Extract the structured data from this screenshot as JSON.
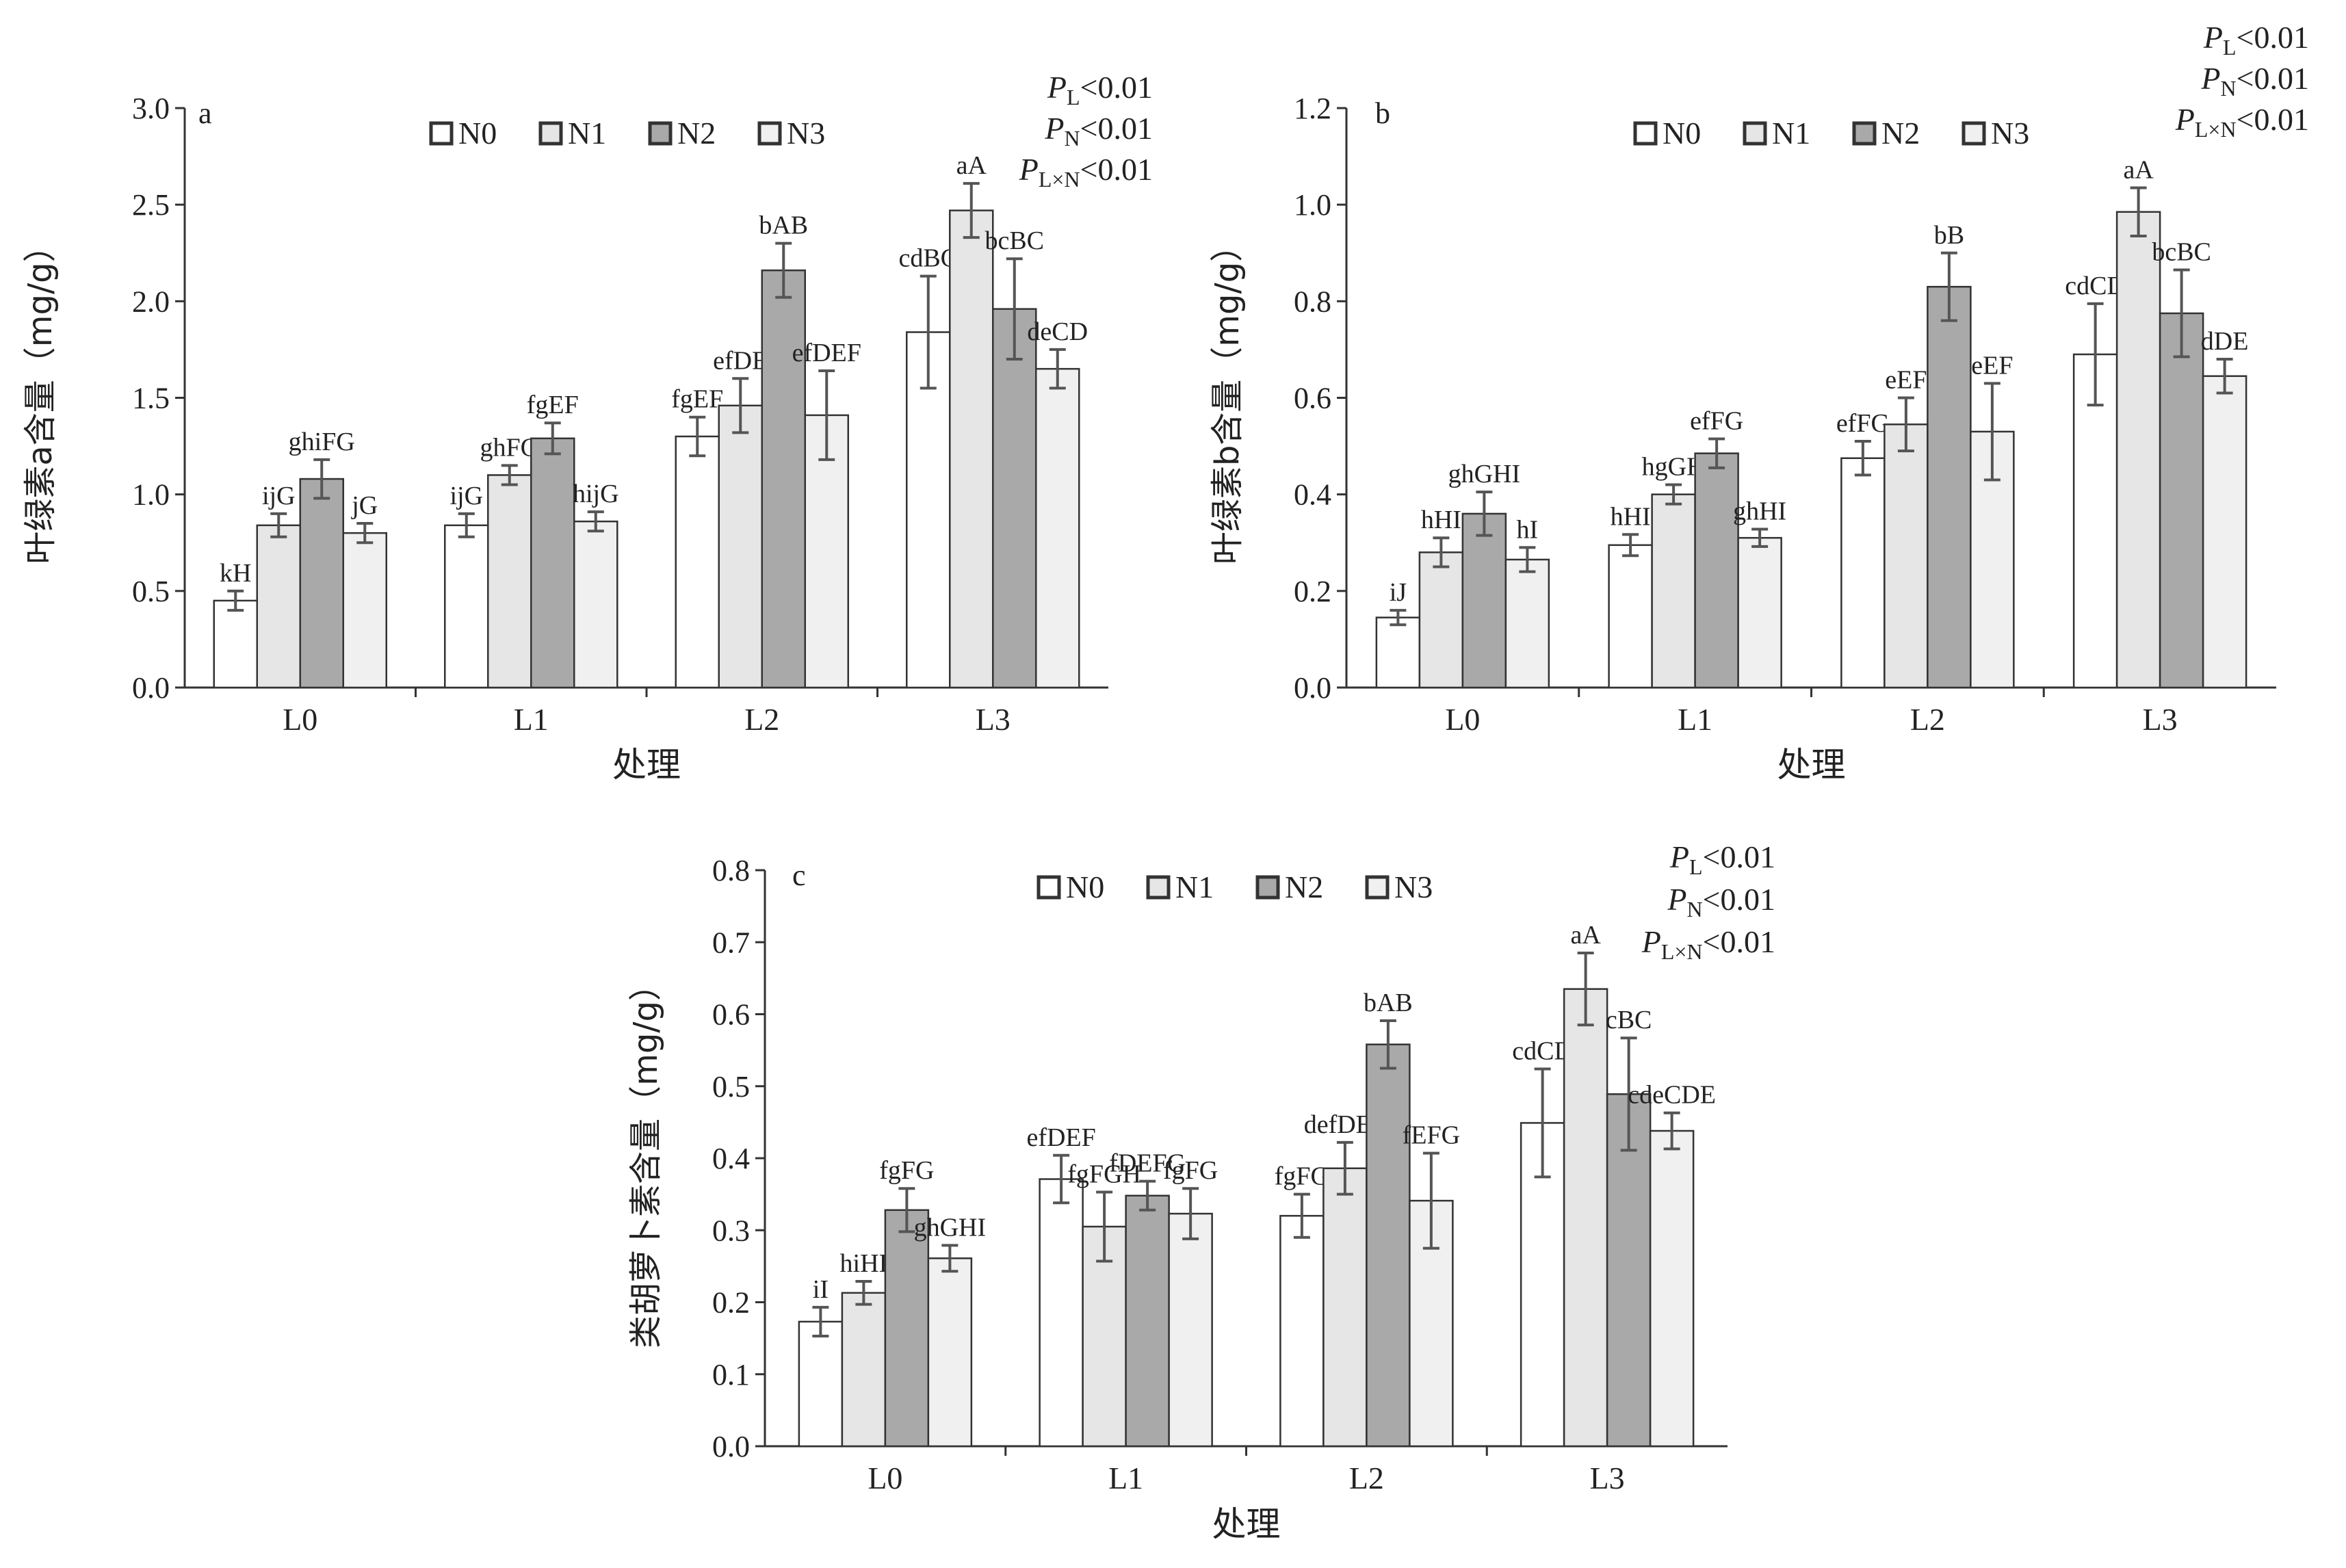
{
  "colors": {
    "N0": "#ffffff",
    "N1": "#e6e6e6",
    "N2": "#a9a9a9",
    "N3": "#f0f0f0",
    "stroke": "#333333",
    "error_bar": "#555555"
  },
  "chart_data": [
    {
      "type": "bar",
      "panel_letter": "a",
      "ylabel": "叶绿素a含量（mg/g）",
      "xlabel": "处理",
      "ylim": [
        0,
        3.0
      ],
      "yticks": [
        "0.0",
        "0.5",
        "1.0",
        "1.5",
        "2.0",
        "2.5",
        "3.0"
      ],
      "categories": [
        "L0",
        "L1",
        "L2",
        "L3"
      ],
      "legend": [
        "N0",
        "N1",
        "N2",
        "N3"
      ],
      "series": [
        {
          "name": "N0",
          "values": [
            0.45,
            0.84,
            1.3,
            1.84
          ],
          "errors": [
            0.05,
            0.06,
            0.1,
            0.29
          ],
          "letters": [
            "kH",
            "ijG",
            "fgEF",
            "cdBC"
          ]
        },
        {
          "name": "N1",
          "values": [
            0.84,
            1.1,
            1.46,
            2.47
          ],
          "errors": [
            0.06,
            0.05,
            0.14,
            0.14
          ],
          "letters": [
            "ijG",
            "ghFG",
            "efDE",
            "aA"
          ]
        },
        {
          "name": "N2",
          "values": [
            1.08,
            1.29,
            2.16,
            1.96
          ],
          "errors": [
            0.1,
            0.08,
            0.14,
            0.26
          ],
          "letters": [
            "ghiFG",
            "fgEF",
            "bAB",
            "bcBC"
          ]
        },
        {
          "name": "N3",
          "values": [
            0.8,
            0.86,
            1.41,
            1.65
          ],
          "errors": [
            0.05,
            0.05,
            0.23,
            0.1
          ],
          "letters": [
            "jG",
            "hijG",
            "efDEF",
            "deCD"
          ]
        }
      ],
      "p_values": [
        "<0.01",
        "<0.01",
        "<0.01"
      ],
      "p_subscripts": [
        "L",
        "N",
        "L×N"
      ],
      "p_symbol": "P"
    },
    {
      "type": "bar",
      "panel_letter": "b",
      "ylabel": "叶绿素b含量（mg/g）",
      "xlabel": "处理",
      "ylim": [
        0,
        1.2
      ],
      "yticks": [
        "0.0",
        "0.2",
        "0.4",
        "0.6",
        "0.8",
        "1.0",
        "1.2"
      ],
      "categories": [
        "L0",
        "L1",
        "L2",
        "L3"
      ],
      "legend": [
        "N0",
        "N1",
        "N2",
        "N3"
      ],
      "series": [
        {
          "name": "N0",
          "values": [
            0.145,
            0.295,
            0.475,
            0.69
          ],
          "errors": [
            0.015,
            0.022,
            0.035,
            0.105
          ],
          "letters": [
            "iJ",
            "hHI",
            "efFG",
            "cdCD"
          ]
        },
        {
          "name": "N1",
          "values": [
            0.28,
            0.4,
            0.545,
            0.985
          ],
          "errors": [
            0.03,
            0.02,
            0.055,
            0.05
          ],
          "letters": [
            "hHI",
            "hgGH",
            "eEF",
            "aA"
          ]
        },
        {
          "name": "N2",
          "values": [
            0.36,
            0.485,
            0.83,
            0.775
          ],
          "errors": [
            0.045,
            0.03,
            0.07,
            0.09
          ],
          "letters": [
            "ghGHI",
            "efFG",
            "bB",
            "bcBC"
          ]
        },
        {
          "name": "N3",
          "values": [
            0.265,
            0.31,
            0.53,
            0.645
          ],
          "errors": [
            0.025,
            0.018,
            0.1,
            0.035
          ],
          "letters": [
            "hI",
            "ghHI",
            "eEF",
            "dDE"
          ]
        }
      ],
      "p_values": [
        "<0.01",
        "<0.01",
        "<0.01"
      ],
      "p_subscripts": [
        "L",
        "N",
        "L×N"
      ],
      "p_symbol": "P"
    },
    {
      "type": "bar",
      "panel_letter": "c",
      "ylabel": "类胡萝卜素含量（mg/g）",
      "xlabel": "处理",
      "ylim": [
        0,
        0.8
      ],
      "yticks": [
        "0.0",
        "0.1",
        "0.2",
        "0.3",
        "0.4",
        "0.5",
        "0.6",
        "0.7",
        "0.8"
      ],
      "categories": [
        "L0",
        "L1",
        "L2",
        "L3"
      ],
      "legend": [
        "N0",
        "N1",
        "N2",
        "N3"
      ],
      "series": [
        {
          "name": "N0",
          "values": [
            0.173,
            0.371,
            0.32,
            0.449
          ],
          "errors": [
            0.02,
            0.033,
            0.03,
            0.075
          ],
          "letters": [
            "iI",
            "efDEF",
            "fgFG",
            "cdCD"
          ]
        },
        {
          "name": "N1",
          "values": [
            0.213,
            0.305,
            0.386,
            0.635
          ],
          "errors": [
            0.016,
            0.048,
            0.036,
            0.05
          ],
          "letters": [
            "hiHI",
            "fgFGH",
            "defDEF",
            "aA"
          ]
        },
        {
          "name": "N2",
          "values": [
            0.328,
            0.348,
            0.558,
            0.489
          ],
          "errors": [
            0.03,
            0.02,
            0.033,
            0.078
          ],
          "letters": [
            "fgFG",
            "fDEFG",
            "bAB",
            "cBC"
          ]
        },
        {
          "name": "N3",
          "values": [
            0.261,
            0.323,
            0.341,
            0.438
          ],
          "errors": [
            0.018,
            0.035,
            0.066,
            0.025
          ],
          "letters": [
            "ghGHI",
            "fgFG",
            "fEFG",
            "cdeCDE"
          ]
        }
      ],
      "p_values": [
        "<0.01",
        "<0.01",
        "<0.01"
      ],
      "p_subscripts": [
        "L",
        "N",
        "L×N"
      ],
      "p_symbol": "P"
    }
  ]
}
